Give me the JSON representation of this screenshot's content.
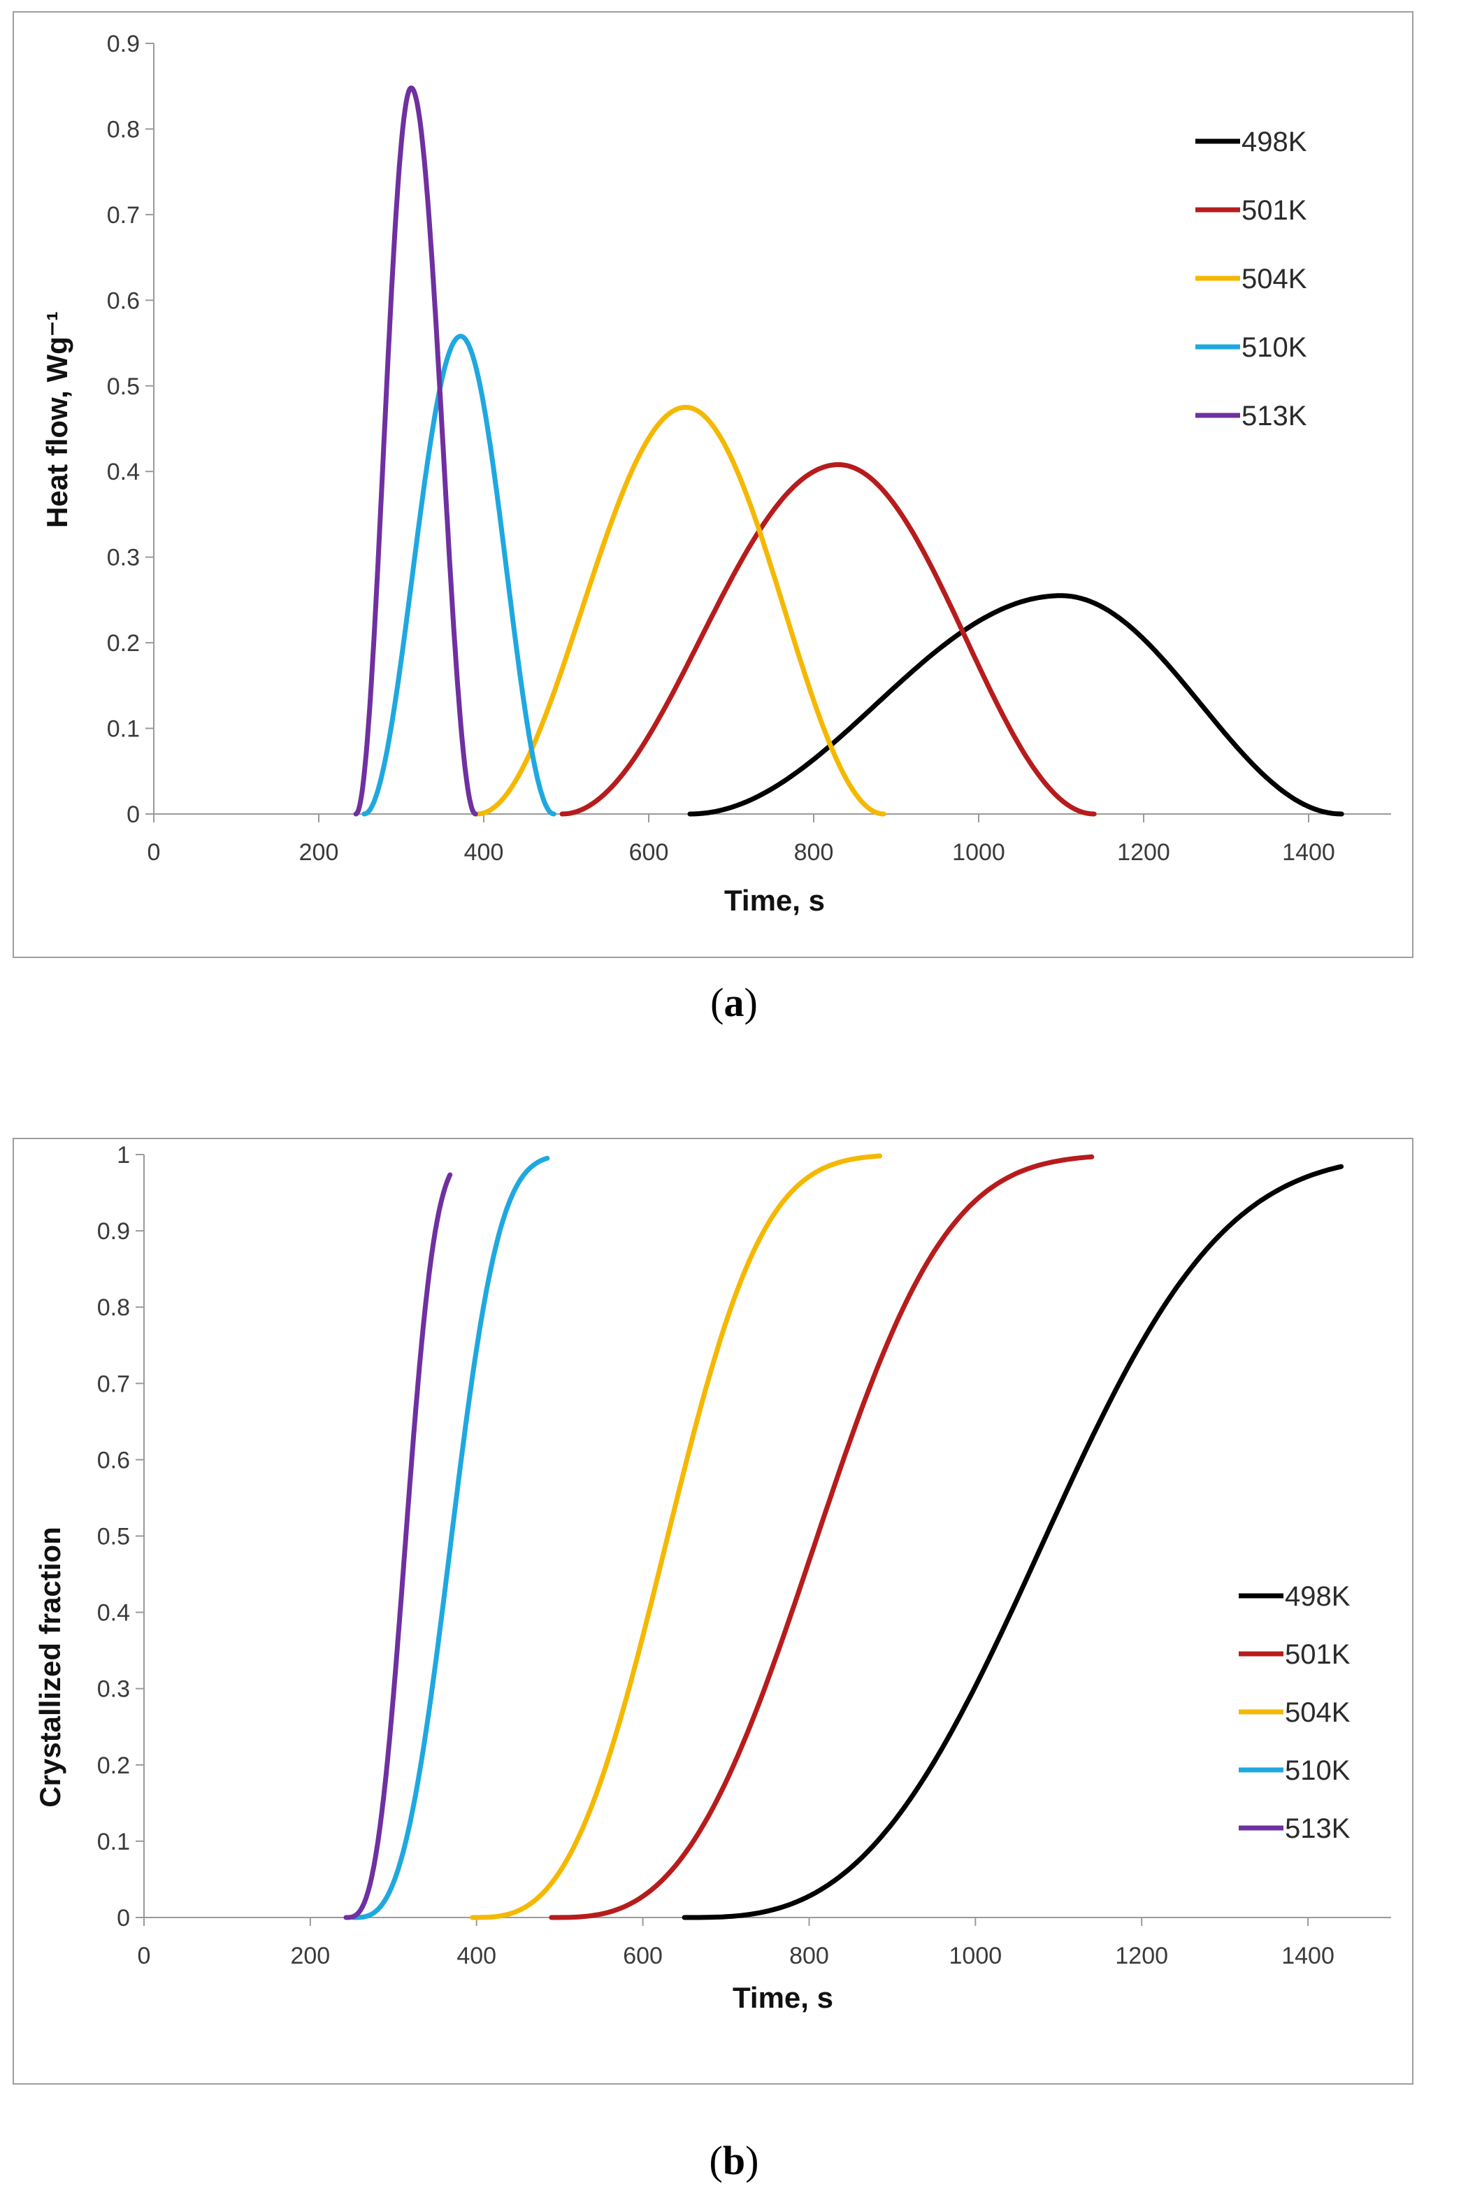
{
  "panel_labels": {
    "a": {
      "open": "(",
      "letter": "a",
      "close": ")"
    },
    "b": {
      "open": "(",
      "letter": "b",
      "close": ")"
    }
  },
  "chart_data": [
    {
      "type": "line",
      "id": "a",
      "title": "",
      "xlabel": "Time, s",
      "ylabel": "Heat flow, Wg⁻¹",
      "xlim": [
        0,
        1500
      ],
      "ylim": [
        0,
        0.9
      ],
      "xticks": [
        0,
        200,
        400,
        600,
        800,
        1000,
        1200,
        1400
      ],
      "yticks": [
        0,
        0.1,
        0.2,
        0.3,
        0.4,
        0.5,
        0.6,
        0.7,
        0.8,
        0.9
      ],
      "yticklabels": [
        "0",
        "0.1",
        "0.2",
        "0.3",
        "0.4",
        "0.5",
        "0.6",
        "0.7",
        "0.8",
        "0.9"
      ],
      "legend_position": "top-right",
      "grid": false,
      "series": [
        {
          "name": "498K",
          "color": "#000000",
          "start": 650,
          "peak": 1100,
          "end": 1440,
          "height": 0.255
        },
        {
          "name": "501K",
          "color": "#b71c1c",
          "start": 495,
          "peak": 830,
          "end": 1140,
          "height": 0.408
        },
        {
          "name": "504K",
          "color": "#f5b800",
          "start": 392,
          "peak": 645,
          "end": 885,
          "height": 0.475
        },
        {
          "name": "510K",
          "color": "#1fa8e0",
          "start": 255,
          "peak": 372,
          "end": 485,
          "height": 0.558
        },
        {
          "name": "513K",
          "color": "#7030a0",
          "start": 245,
          "peak": 312,
          "end": 390,
          "height": 0.848
        }
      ]
    },
    {
      "type": "line",
      "id": "b",
      "title": "",
      "xlabel": "Time, s",
      "ylabel": "Crystallized fraction",
      "xlim": [
        0,
        1500
      ],
      "ylim": [
        0,
        1
      ],
      "xticks": [
        0,
        200,
        400,
        600,
        800,
        1000,
        1200,
        1400
      ],
      "yticks": [
        0,
        0.1,
        0.2,
        0.3,
        0.4,
        0.5,
        0.6,
        0.7,
        0.8,
        0.9,
        1
      ],
      "yticklabels": [
        "0",
        "0.1",
        "0.2",
        "0.3",
        "0.4",
        "0.5",
        "0.6",
        "0.7",
        "0.8",
        "0.9",
        "1"
      ],
      "legend_position": "bottom-right",
      "grid": false,
      "series": [
        {
          "name": "498K",
          "color": "#000000",
          "start": 650,
          "half": 1085,
          "end": 1440
        },
        {
          "name": "501K",
          "color": "#b71c1c",
          "start": 490,
          "half": 810,
          "end": 1140
        },
        {
          "name": "504K",
          "color": "#f5b800",
          "start": 395,
          "half": 630,
          "end": 885
        },
        {
          "name": "510K",
          "color": "#1fa8e0",
          "start": 252,
          "half": 370,
          "end": 485
        },
        {
          "name": "513K",
          "color": "#7030a0",
          "start": 243,
          "half": 315,
          "end": 368
        }
      ]
    }
  ]
}
